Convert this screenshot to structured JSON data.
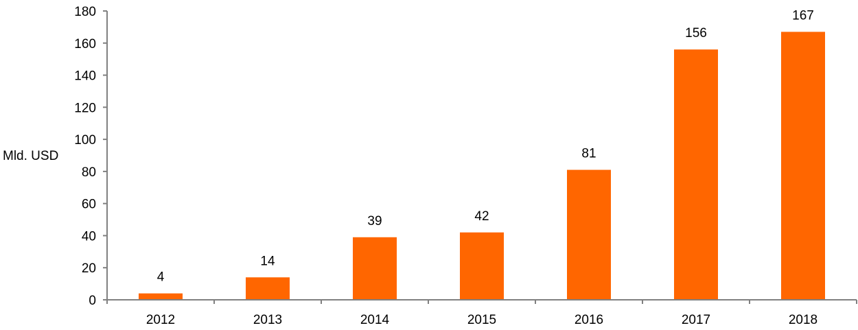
{
  "chart_data": {
    "type": "bar",
    "categories": [
      "2012",
      "2013",
      "2014",
      "2015",
      "2016",
      "2017",
      "2018"
    ],
    "values": [
      4,
      14,
      39,
      42,
      81,
      156,
      167
    ],
    "data_labels": [
      "4",
      "14",
      "39",
      "42",
      "81",
      "156",
      "167"
    ],
    "ylabel": "Mld. USD",
    "ylim": [
      0,
      180
    ],
    "yticks": [
      "0",
      "20",
      "40",
      "60",
      "80",
      "100",
      "120",
      "140",
      "160",
      "180"
    ],
    "grid": false,
    "legend": "none",
    "colors": {
      "bar": "#FF6600",
      "axis": "#808080",
      "text": "#000000"
    }
  }
}
